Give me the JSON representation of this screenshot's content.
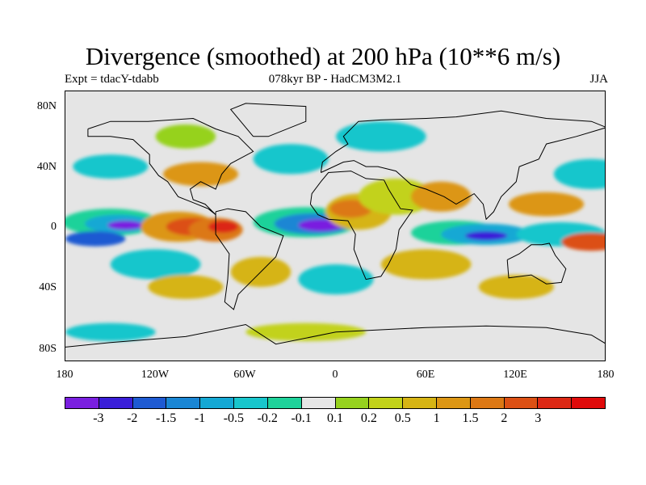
{
  "title": "Divergence (smoothed) at 200 hPa (10**6 m/s)",
  "subtitle_left": "Expt = tdacY-tdabb",
  "subtitle_center": "078kyr BP - HadCM3M2.1",
  "subtitle_right": "JJA",
  "lat_labels": [
    "80N",
    "40N",
    "0",
    "40S",
    "80S"
  ],
  "lon_labels": [
    "180",
    "120W",
    "60W",
    "0",
    "60E",
    "120E",
    "180"
  ],
  "colorbar": {
    "colors": [
      "#7a1fe0",
      "#3a1ed8",
      "#1e5ad2",
      "#1a86d4",
      "#14a8d4",
      "#18c6cc",
      "#1ed29a",
      "#e6e6e6",
      "#96d21e",
      "#c2d21a",
      "#d6b414",
      "#dc9614",
      "#dc7814",
      "#dc5014",
      "#dc2814",
      "#e00a0a"
    ],
    "labels": [
      "-3",
      "-2",
      "-1.5",
      "-1",
      "-0.5",
      "-0.2",
      "-0.1",
      "0.1",
      "0.2",
      "0.5",
      "1",
      "1.5",
      "2",
      "3"
    ]
  },
  "map": {
    "background": "#e5e5e5",
    "blobs": [
      {
        "lon": -150,
        "lat": 3,
        "rx": 32,
        "ry": 9,
        "c": 6
      },
      {
        "lon": -145,
        "lat": 2,
        "rx": 22,
        "ry": 6,
        "c": 4
      },
      {
        "lon": -140,
        "lat": 1,
        "rx": 12,
        "ry": 3,
        "c": 0
      },
      {
        "lon": -160,
        "lat": -8,
        "rx": 20,
        "ry": 5,
        "c": 2
      },
      {
        "lon": -105,
        "lat": 0,
        "rx": 25,
        "ry": 10,
        "c": 11
      },
      {
        "lon": -95,
        "lat": 0,
        "rx": 18,
        "ry": 6,
        "c": 13
      },
      {
        "lon": -80,
        "lat": -2,
        "rx": 18,
        "ry": 8,
        "c": 12
      },
      {
        "lon": -75,
        "lat": 0,
        "rx": 10,
        "ry": 4,
        "c": 14
      },
      {
        "lon": -20,
        "lat": 3,
        "rx": 35,
        "ry": 10,
        "c": 6
      },
      {
        "lon": -15,
        "lat": 2,
        "rx": 26,
        "ry": 7,
        "c": 3
      },
      {
        "lon": -10,
        "lat": 1,
        "rx": 15,
        "ry": 4,
        "c": 0
      },
      {
        "lon": 15,
        "lat": 10,
        "rx": 22,
        "ry": 12,
        "c": 10
      },
      {
        "lon": 10,
        "lat": 12,
        "rx": 14,
        "ry": 6,
        "c": 12
      },
      {
        "lon": 40,
        "lat": 20,
        "rx": 25,
        "ry": 12,
        "c": 9
      },
      {
        "lon": 70,
        "lat": 20,
        "rx": 20,
        "ry": 10,
        "c": 11
      },
      {
        "lon": 80,
        "lat": -4,
        "rx": 30,
        "ry": 8,
        "c": 6
      },
      {
        "lon": 100,
        "lat": -5,
        "rx": 30,
        "ry": 7,
        "c": 4
      },
      {
        "lon": 100,
        "lat": -6,
        "rx": 14,
        "ry": 3,
        "c": 1
      },
      {
        "lon": 150,
        "lat": -5,
        "rx": 30,
        "ry": 8,
        "c": 5
      },
      {
        "lon": 140,
        "lat": 15,
        "rx": 25,
        "ry": 8,
        "c": 11
      },
      {
        "lon": 170,
        "lat": -10,
        "rx": 20,
        "ry": 6,
        "c": 13
      },
      {
        "lon": 60,
        "lat": -25,
        "rx": 30,
        "ry": 10,
        "c": 10
      },
      {
        "lon": -120,
        "lat": -25,
        "rx": 30,
        "ry": 10,
        "c": 5
      },
      {
        "lon": -100,
        "lat": -40,
        "rx": 25,
        "ry": 8,
        "c": 10
      },
      {
        "lon": -50,
        "lat": -30,
        "rx": 20,
        "ry": 10,
        "c": 10
      },
      {
        "lon": 0,
        "lat": -35,
        "rx": 25,
        "ry": 10,
        "c": 5
      },
      {
        "lon": 120,
        "lat": -40,
        "rx": 25,
        "ry": 8,
        "c": 10
      },
      {
        "lon": -30,
        "lat": 45,
        "rx": 25,
        "ry": 10,
        "c": 5
      },
      {
        "lon": -90,
        "lat": 35,
        "rx": 25,
        "ry": 8,
        "c": 11
      },
      {
        "lon": -150,
        "lat": 40,
        "rx": 25,
        "ry": 8,
        "c": 5
      },
      {
        "lon": 170,
        "lat": 35,
        "rx": 25,
        "ry": 10,
        "c": 5
      },
      {
        "lon": -100,
        "lat": 60,
        "rx": 20,
        "ry": 8,
        "c": 8
      },
      {
        "lon": 30,
        "lat": 60,
        "rx": 30,
        "ry": 10,
        "c": 5
      },
      {
        "lon": -20,
        "lat": -70,
        "rx": 40,
        "ry": 6,
        "c": 9
      },
      {
        "lon": -150,
        "lat": -70,
        "rx": 30,
        "ry": 6,
        "c": 5
      }
    ]
  }
}
